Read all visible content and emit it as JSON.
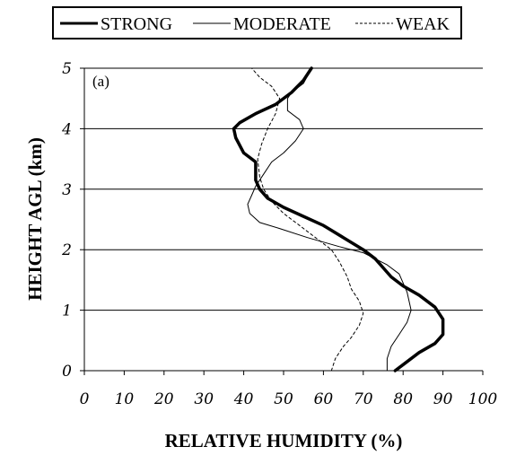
{
  "chart_data": {
    "type": "line",
    "panel_label": "(a)",
    "xlabel": "RELATIVE HUMIDITY (%)",
    "ylabel": "HEIGHT AGL (km)",
    "xlim": [
      0,
      100
    ],
    "ylim": [
      0,
      5
    ],
    "xticks": [
      0,
      10,
      20,
      30,
      40,
      50,
      60,
      70,
      80,
      90,
      100
    ],
    "yticks": [
      0,
      1,
      2,
      3,
      4,
      5
    ],
    "grid": "horizontal",
    "legend": {
      "placement": "top",
      "framed": true
    },
    "series": [
      {
        "name": "STRONG",
        "style": "thick-solid",
        "points": [
          [
            78,
            0.0
          ],
          [
            80,
            0.1
          ],
          [
            84,
            0.3
          ],
          [
            88,
            0.45
          ],
          [
            90,
            0.6
          ],
          [
            90,
            0.85
          ],
          [
            88,
            1.05
          ],
          [
            84,
            1.25
          ],
          [
            80,
            1.4
          ],
          [
            77,
            1.55
          ],
          [
            75,
            1.7
          ],
          [
            73,
            1.85
          ],
          [
            70,
            2.0
          ],
          [
            65,
            2.2
          ],
          [
            60,
            2.4
          ],
          [
            55,
            2.55
          ],
          [
            50,
            2.7
          ],
          [
            46,
            2.85
          ],
          [
            44,
            3.0
          ],
          [
            43,
            3.15
          ],
          [
            43,
            3.3
          ],
          [
            43,
            3.45
          ],
          [
            42,
            3.5
          ],
          [
            40,
            3.6
          ],
          [
            38,
            3.85
          ],
          [
            37.5,
            4.0
          ],
          [
            39,
            4.1
          ],
          [
            43,
            4.25
          ],
          [
            48,
            4.4
          ],
          [
            52,
            4.6
          ],
          [
            55,
            4.8
          ],
          [
            57,
            5.0
          ]
        ]
      },
      {
        "name": "MODERATE",
        "style": "thin-solid",
        "points": [
          [
            76,
            0.0
          ],
          [
            76,
            0.2
          ],
          [
            77,
            0.4
          ],
          [
            79,
            0.6
          ],
          [
            81,
            0.8
          ],
          [
            82,
            1.0
          ],
          [
            81,
            1.3
          ],
          [
            79,
            1.6
          ],
          [
            76,
            1.75
          ],
          [
            70,
            1.95
          ],
          [
            64,
            2.05
          ],
          [
            56,
            2.2
          ],
          [
            49,
            2.35
          ],
          [
            44,
            2.45
          ],
          [
            41.5,
            2.6
          ],
          [
            41,
            2.75
          ],
          [
            42,
            2.9
          ],
          [
            43,
            3.05
          ],
          [
            44.5,
            3.2
          ],
          [
            47,
            3.45
          ],
          [
            50,
            3.6
          ],
          [
            53,
            3.8
          ],
          [
            55,
            4.0
          ],
          [
            54,
            4.15
          ],
          [
            51,
            4.3
          ],
          [
            51,
            4.5
          ],
          [
            52,
            4.6
          ],
          [
            55,
            4.75
          ],
          [
            57,
            5.0
          ]
        ]
      },
      {
        "name": "WEAK",
        "style": "dashed",
        "points": [
          [
            62,
            0.0
          ],
          [
            63,
            0.2
          ],
          [
            65,
            0.4
          ],
          [
            67,
            0.55
          ],
          [
            69,
            0.75
          ],
          [
            70,
            0.95
          ],
          [
            69,
            1.15
          ],
          [
            67,
            1.35
          ],
          [
            66,
            1.55
          ],
          [
            64,
            1.8
          ],
          [
            62,
            2.0
          ],
          [
            58,
            2.2
          ],
          [
            54,
            2.4
          ],
          [
            50,
            2.6
          ],
          [
            47,
            2.8
          ],
          [
            45,
            3.0
          ],
          [
            44,
            3.2
          ],
          [
            43.5,
            3.5
          ],
          [
            44.5,
            3.75
          ],
          [
            46,
            4.0
          ],
          [
            48,
            4.25
          ],
          [
            49,
            4.5
          ],
          [
            47,
            4.7
          ],
          [
            44,
            4.85
          ],
          [
            42,
            5.0
          ]
        ]
      }
    ]
  }
}
